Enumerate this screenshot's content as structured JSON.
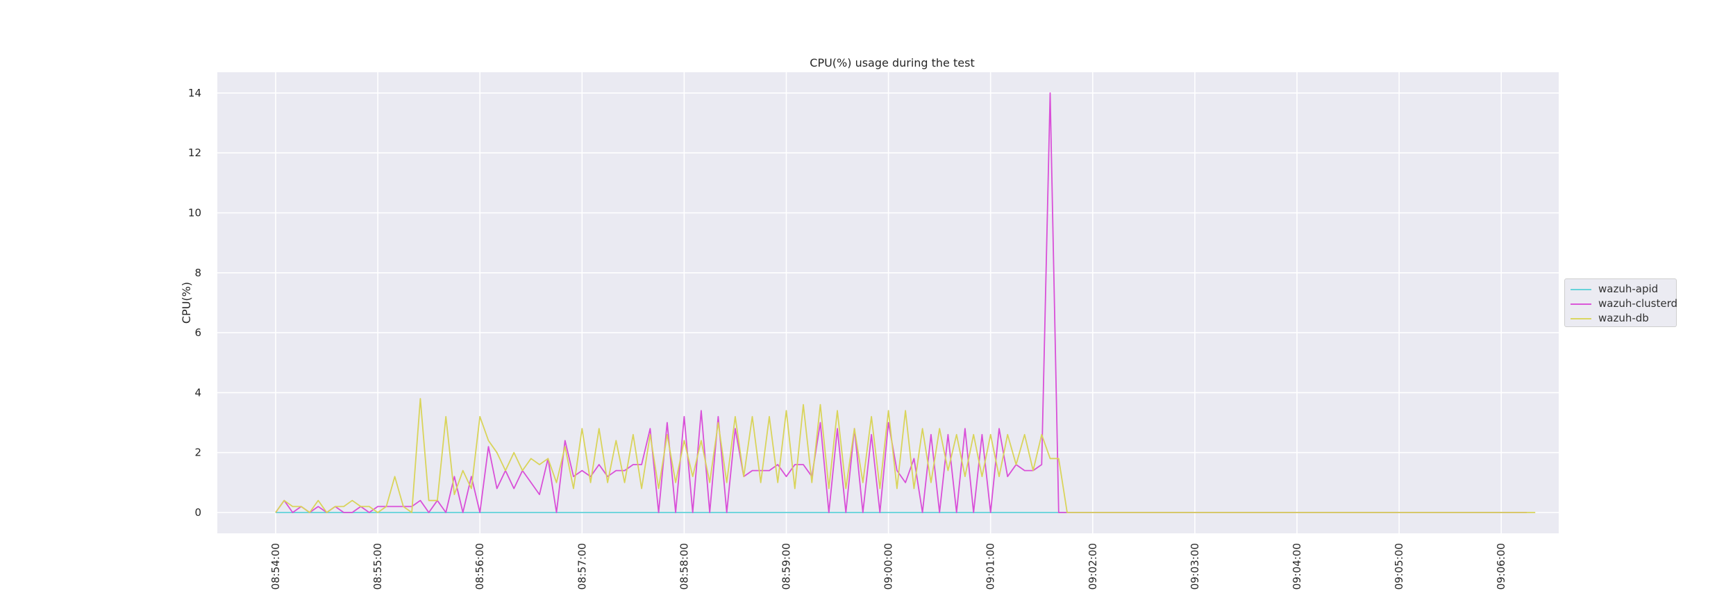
{
  "chart_data": {
    "type": "line",
    "title": "CPU(%) usage during the test",
    "xlabel": "",
    "ylabel": "CPU(%)",
    "ylim": [
      -0.7,
      14.7
    ],
    "yticks": [
      0,
      2,
      4,
      6,
      8,
      10,
      12,
      14
    ],
    "xticks": [
      "08:54:00",
      "08:55:00",
      "08:56:00",
      "08:57:00",
      "08:58:00",
      "08:59:00",
      "09:00:00",
      "09:01:00",
      "09:02:00",
      "09:03:00",
      "09:04:00",
      "09:05:00",
      "09:06:00"
    ],
    "x_start": "08:54:00",
    "x_step_seconds": 5,
    "x_count": 146,
    "grid": true,
    "legend_position": "right outside",
    "series": [
      {
        "name": "wazuh-apid",
        "color": "#5ed0d8",
        "values": "all 0 (146 points)"
      },
      {
        "name": "wazuh-clusterd",
        "color": "#d94fd8",
        "values": [
          0,
          0.4,
          0,
          0.2,
          0,
          0.2,
          0,
          0.2,
          0,
          0,
          0.2,
          0,
          0.2,
          0.2,
          0.2,
          0.2,
          0.2,
          0.4,
          0,
          0.4,
          0,
          1.2,
          0,
          1.2,
          0,
          2.2,
          0.8,
          1.4,
          0.8,
          1.4,
          1.0,
          0.6,
          1.8,
          0,
          2.4,
          1.2,
          1.4,
          1.2,
          1.6,
          1.2,
          1.4,
          1.4,
          1.6,
          1.6,
          2.8,
          0,
          3.0,
          0,
          3.2,
          0,
          3.4,
          0,
          3.2,
          0,
          2.8,
          1.2,
          1.4,
          1.4,
          1.4,
          1.6,
          1.2,
          1.6,
          1.6,
          1.2,
          3.0,
          0,
          2.8,
          0,
          2.8,
          0,
          2.6,
          0,
          3.0,
          1.4,
          1.0,
          1.8,
          0,
          2.6,
          0,
          2.6,
          0,
          2.8,
          0,
          2.6,
          0,
          2.8,
          1.2,
          1.6,
          1.4,
          1.4,
          1.6,
          14,
          0,
          0,
          0,
          0,
          0,
          0,
          0,
          0,
          0,
          0,
          0,
          0,
          0,
          0,
          0,
          0,
          0,
          0,
          0,
          0,
          0,
          0,
          0,
          0,
          0,
          0,
          0,
          0,
          0,
          0,
          0,
          0,
          0,
          0,
          0,
          0,
          0,
          0,
          0,
          0,
          0,
          0,
          0,
          0,
          0,
          0,
          0,
          0,
          0,
          0,
          0,
          0,
          0,
          0,
          0,
          0
        ]
      },
      {
        "name": "wazuh-db",
        "color": "#d9d45a",
        "values": [
          0,
          0.4,
          0.2,
          0.2,
          0,
          0.4,
          0,
          0.2,
          0.2,
          0.4,
          0.2,
          0.2,
          0,
          0.2,
          1.2,
          0.2,
          0,
          3.8,
          0.4,
          0.4,
          3.2,
          0.6,
          1.4,
          0.8,
          3.2,
          2.4,
          2.0,
          1.4,
          2.0,
          1.4,
          1.8,
          1.6,
          1.8,
          1.0,
          2.2,
          0.8,
          2.8,
          1.0,
          2.8,
          1.0,
          2.4,
          1.0,
          2.6,
          0.8,
          2.6,
          0.8,
          2.6,
          1.0,
          2.4,
          1.2,
          2.4,
          1.0,
          3.0,
          1.0,
          3.2,
          1.2,
          3.2,
          1.0,
          3.2,
          1.0,
          3.4,
          0.8,
          3.6,
          1.0,
          3.6,
          0.8,
          3.4,
          0.8,
          2.8,
          1.0,
          3.2,
          0.8,
          3.4,
          0.8,
          3.4,
          0.8,
          2.8,
          1.0,
          2.8,
          1.4,
          2.6,
          1.2,
          2.6,
          1.2,
          2.6,
          1.2,
          2.6,
          1.6,
          2.6,
          1.4,
          2.6,
          1.8,
          1.8,
          0,
          0,
          0,
          0,
          0,
          0,
          0,
          0,
          0,
          0,
          0,
          0,
          0,
          0,
          0,
          0,
          0,
          0,
          0,
          0,
          0,
          0,
          0,
          0,
          0,
          0,
          0,
          0,
          0,
          0,
          0,
          0,
          0,
          0,
          0,
          0,
          0,
          0,
          0,
          0,
          0,
          0,
          0,
          0,
          0,
          0,
          0,
          0,
          0,
          0,
          0,
          0,
          0,
          0,
          0,
          0
        ]
      }
    ]
  },
  "legend": {
    "items": [
      {
        "label": "wazuh-apid",
        "color": "#5ed0d8"
      },
      {
        "label": "wazuh-clusterd",
        "color": "#d94fd8"
      },
      {
        "label": "wazuh-db",
        "color": "#d9d45a"
      }
    ]
  }
}
